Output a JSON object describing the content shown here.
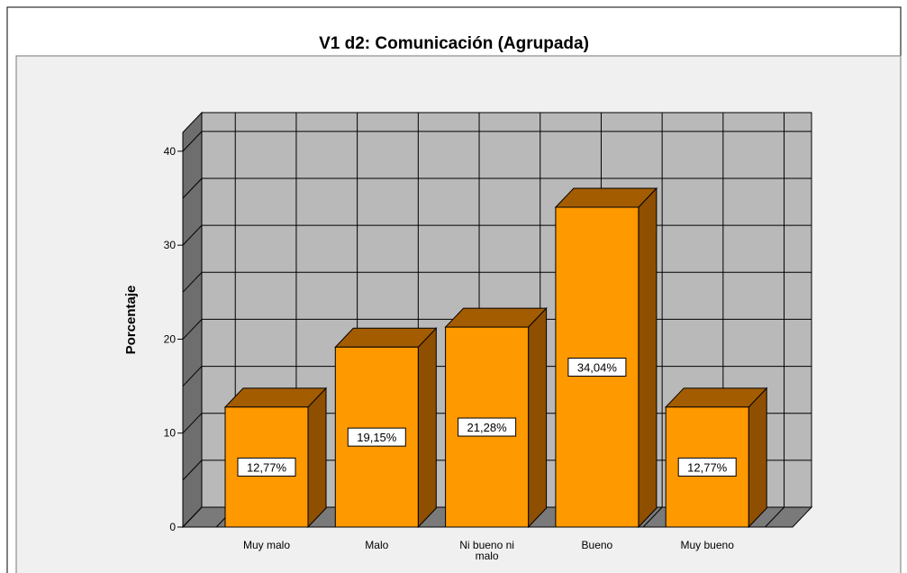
{
  "chart_data": {
    "type": "bar3d",
    "title": "V1 d2: Comunicación (Agrupada)",
    "y_label": "Porcentaje",
    "categories": [
      "Muy malo",
      "Malo",
      "Ni bueno ni malo",
      "Bueno",
      "Muy bueno"
    ],
    "values": [
      12.77,
      19.15,
      21.28,
      34.04,
      12.77
    ],
    "value_labels": [
      "12,77%",
      "19,15%",
      "21,28%",
      "34,04%",
      "12,77%"
    ],
    "color": "#ff9900",
    "ylim": [
      0,
      42
    ],
    "yticks": [
      0,
      10,
      20,
      30,
      40
    ],
    "grid": true
  }
}
